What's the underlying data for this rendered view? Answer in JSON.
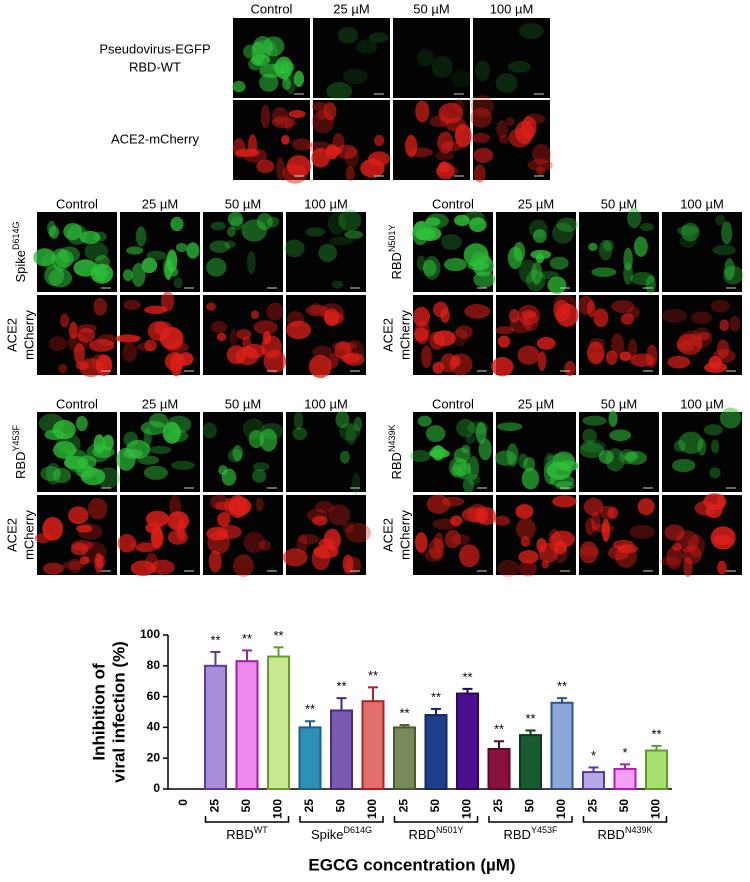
{
  "top_panel": {
    "columns": [
      "Control",
      "25 µM",
      "50 µM",
      "100 µM"
    ],
    "row_labels": [
      [
        "Pseudovirus-EGFP",
        "RBD-WT"
      ],
      [
        "ACE2-mCherry"
      ]
    ]
  },
  "panels": [
    {
      "columns": [
        "Control",
        "25 µM",
        "50 µM",
        "100 µM"
      ],
      "label_top": {
        "base": "Spike",
        "sup": "D614G"
      },
      "label_bottom": [
        "ACE2",
        "mCherry"
      ]
    },
    {
      "columns": [
        "Control",
        "25 µM",
        "50 µM",
        "100 µM"
      ],
      "label_top": {
        "base": "RBD",
        "sup": "N501Y"
      },
      "label_bottom": [
        "ACE2",
        "mCherry"
      ]
    },
    {
      "columns": [
        "Control",
        "25 µM",
        "50 µM",
        "100 µM"
      ],
      "label_top": {
        "base": "RBD",
        "sup": "Y453F"
      },
      "label_bottom": [
        "ACE2",
        "mCherry"
      ]
    },
    {
      "columns": [
        "Control",
        "25 µM",
        "50 µM",
        "100 µM"
      ],
      "label_top": {
        "base": "RBD",
        "sup": "N439K"
      },
      "label_bottom": [
        "ACE2",
        "mCherry"
      ]
    }
  ],
  "chart_data": {
    "type": "bar",
    "y_label": [
      "Inhibition of",
      "viral infection (%)"
    ],
    "x_label": "EGCG concentration (µM)",
    "categories": [
      "0",
      "25",
      "50",
      "100",
      "25",
      "50",
      "100",
      "25",
      "50",
      "100",
      "25",
      "50",
      "100",
      "25",
      "50",
      "100"
    ],
    "values": [
      0,
      80,
      83,
      86,
      40,
      51,
      57,
      40,
      48,
      62,
      26,
      35,
      56,
      11,
      13,
      25
    ],
    "errors": [
      0,
      9,
      7,
      6,
      4,
      8,
      9,
      1.5,
      4,
      3,
      5,
      3,
      3,
      3,
      3,
      3
    ],
    "significance": [
      null,
      "**",
      "**",
      "**",
      "**",
      "**",
      "**",
      "**",
      "**",
      "**",
      "**",
      "**",
      "**",
      "*",
      "*",
      "**"
    ],
    "colors": [
      "#ffffff",
      "#a68fd8",
      "#ee88ee",
      "#c8e890",
      "#2e8fb8",
      "#7a5ab0",
      "#e07070",
      "#7a8a5a",
      "#1f3f8a",
      "#4a1090",
      "#8a1040",
      "#1a5a30",
      "#8aa8d8",
      "#b8a8e8",
      "#f4a0f4",
      "#a8e070"
    ],
    "edge_colors": [
      "#000000",
      "#5b3a9a",
      "#a020a0",
      "#6a9a30",
      "#1f5f80",
      "#4a2a80",
      "#b02020",
      "#4a5a30",
      "#102a60",
      "#2a0860",
      "#5a0828",
      "#0a3a18",
      "#305090",
      "#5a3a9a",
      "#b020b0",
      "#5a9a30"
    ],
    "groups": [
      {
        "base": "RBD",
        "sup": "WT"
      },
      {
        "base": "Spike",
        "sup": "D614G"
      },
      {
        "base": "RBD",
        "sup": "N501Y"
      },
      {
        "base": "RBD",
        "sup": "Y453F"
      },
      {
        "base": "RBD",
        "sup": "N439K"
      }
    ],
    "ylim": [
      0,
      100
    ],
    "yticks": [
      0,
      20,
      40,
      60,
      80,
      100
    ]
  }
}
